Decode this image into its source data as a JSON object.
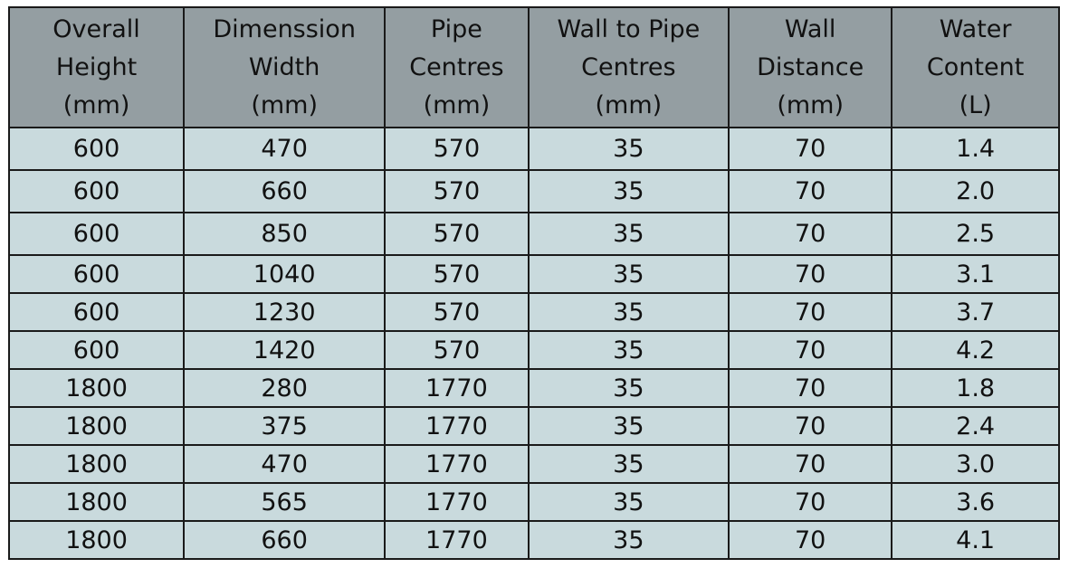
{
  "headers": [
    [
      "Overall",
      "Height",
      "(mm)"
    ],
    [
      "Dimenssion",
      "Width",
      "(mm)"
    ],
    [
      "Pipe",
      "Centres",
      "(mm)"
    ],
    [
      "Wall to Pipe",
      "Centres",
      "(mm)"
    ],
    [
      "Wall",
      "Distance",
      "(mm)"
    ],
    [
      "Water",
      "Content",
      "(L)"
    ]
  ],
  "rows": [
    [
      "600",
      "470",
      "570",
      "35",
      "70",
      "1.4"
    ],
    [
      "600",
      "660",
      "570",
      "35",
      "70",
      "2.0"
    ],
    [
      "600",
      "850",
      "570",
      "35",
      "70",
      "2.5"
    ],
    [
      "600",
      "1040",
      "570",
      "35",
      "70",
      "3.1"
    ],
    [
      "600",
      "1230",
      "570",
      "35",
      "70",
      "3.7"
    ],
    [
      "600",
      "1420",
      "570",
      "35",
      "70",
      "4.2"
    ],
    [
      "1800",
      "280",
      "1770",
      "35",
      "70",
      "1.8"
    ],
    [
      "1800",
      "375",
      "1770",
      "35",
      "70",
      "2.4"
    ],
    [
      "1800",
      "470",
      "1770",
      "35",
      "70",
      "3.0"
    ],
    [
      "1800",
      "565",
      "1770",
      "35",
      "70",
      "3.6"
    ],
    [
      "1800",
      "660",
      "1770",
      "35",
      "70",
      "4.1"
    ]
  ],
  "colors": {
    "header_bg": "#949ea2",
    "row_bg": "#c9dadd",
    "border": "#1a1a1a"
  }
}
